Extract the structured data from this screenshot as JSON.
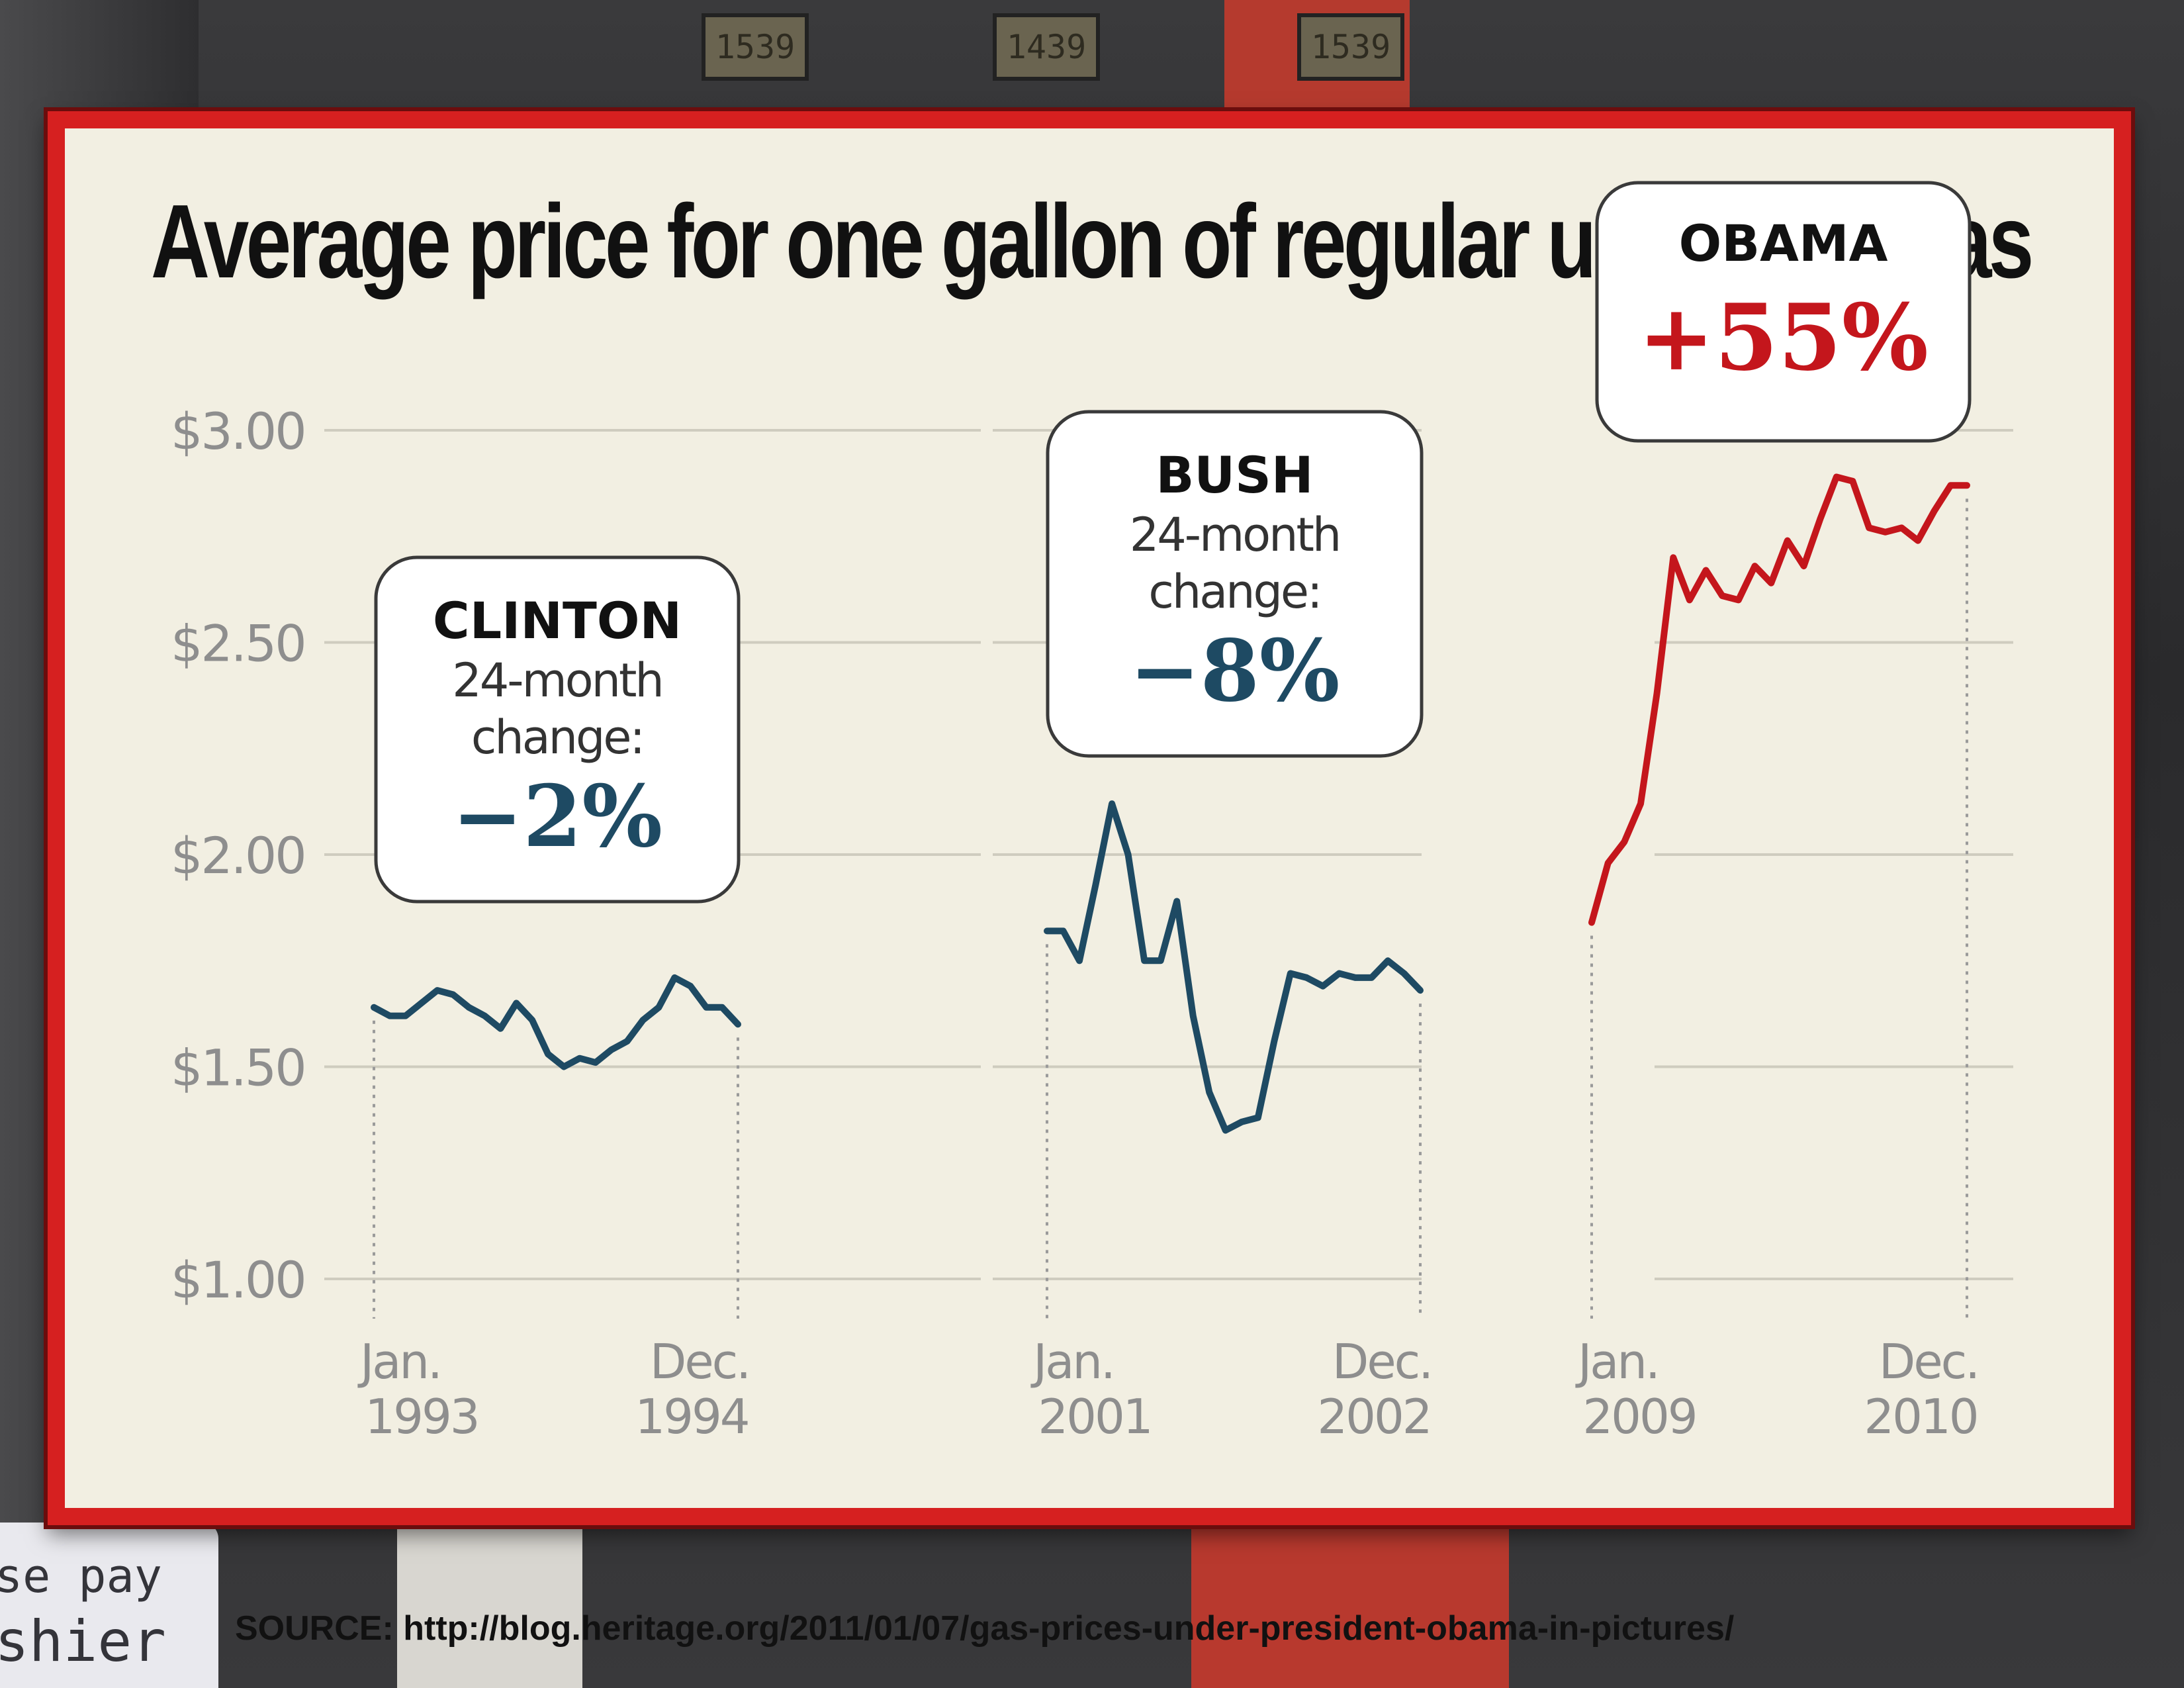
{
  "source_text": "SOURCE: http://blog.heritage.org/2011/01/07/gas-prices-under-president-obama-in-pictures/",
  "background": {
    "sign_lines": [
      "se pay",
      "shier"
    ],
    "pump_displays": [
      "1539",
      "1439",
      "1539"
    ]
  },
  "colors": {
    "frame": "#d62020",
    "panel": "#f2efe2",
    "clinton_bush_line": "#1e4a63",
    "obama_line": "#c4161c",
    "obama_text": "#c4161c",
    "change_text": "#1e4a63"
  },
  "chart_data": {
    "type": "line",
    "title": "Average price for one gallon of regular unleaded gas",
    "ylabel": "",
    "ylim": [
      1.0,
      3.0
    ],
    "yticks": [
      {
        "value": 3.0,
        "label": "$3.00"
      },
      {
        "value": 2.5,
        "label": "$2.50"
      },
      {
        "value": 2.0,
        "label": "$2.00"
      },
      {
        "value": 1.5,
        "label": "$1.50"
      },
      {
        "value": 1.0,
        "label": "$1.00"
      }
    ],
    "grid": true,
    "series": [
      {
        "name": "CLINTON",
        "change_label": "24-month change:",
        "change": "−2%",
        "start_label": [
          "Jan.",
          "1993"
        ],
        "end_label": [
          "Dec.",
          "1994"
        ],
        "color": "#1e4a63",
        "values": [
          1.64,
          1.62,
          1.62,
          1.65,
          1.68,
          1.67,
          1.64,
          1.62,
          1.59,
          1.65,
          1.61,
          1.53,
          1.5,
          1.52,
          1.51,
          1.54,
          1.56,
          1.61,
          1.64,
          1.71,
          1.69,
          1.64,
          1.64,
          1.6
        ]
      },
      {
        "name": "BUSH",
        "change_label": "24-month change:",
        "change": "−8%",
        "start_label": [
          "Jan.",
          "2001"
        ],
        "end_label": [
          "Dec.",
          "2002"
        ],
        "color": "#1e4a63",
        "values": [
          1.82,
          1.82,
          1.75,
          1.93,
          2.12,
          2.0,
          1.75,
          1.75,
          1.89,
          1.62,
          1.44,
          1.35,
          1.37,
          1.38,
          1.56,
          1.72,
          1.71,
          1.69,
          1.72,
          1.71,
          1.71,
          1.75,
          1.72,
          1.68
        ]
      },
      {
        "name": "OBAMA",
        "change_label": "",
        "change": "+55%",
        "start_label": [
          "Jan.",
          "2009"
        ],
        "end_label": [
          "Dec.",
          "2010"
        ],
        "color": "#c4161c",
        "values": [
          1.84,
          1.98,
          2.03,
          2.12,
          2.38,
          2.7,
          2.6,
          2.67,
          2.61,
          2.6,
          2.68,
          2.64,
          2.74,
          2.68,
          2.79,
          2.89,
          2.88,
          2.77,
          2.76,
          2.77,
          2.74,
          2.81,
          2.87,
          2.87
        ]
      }
    ]
  }
}
